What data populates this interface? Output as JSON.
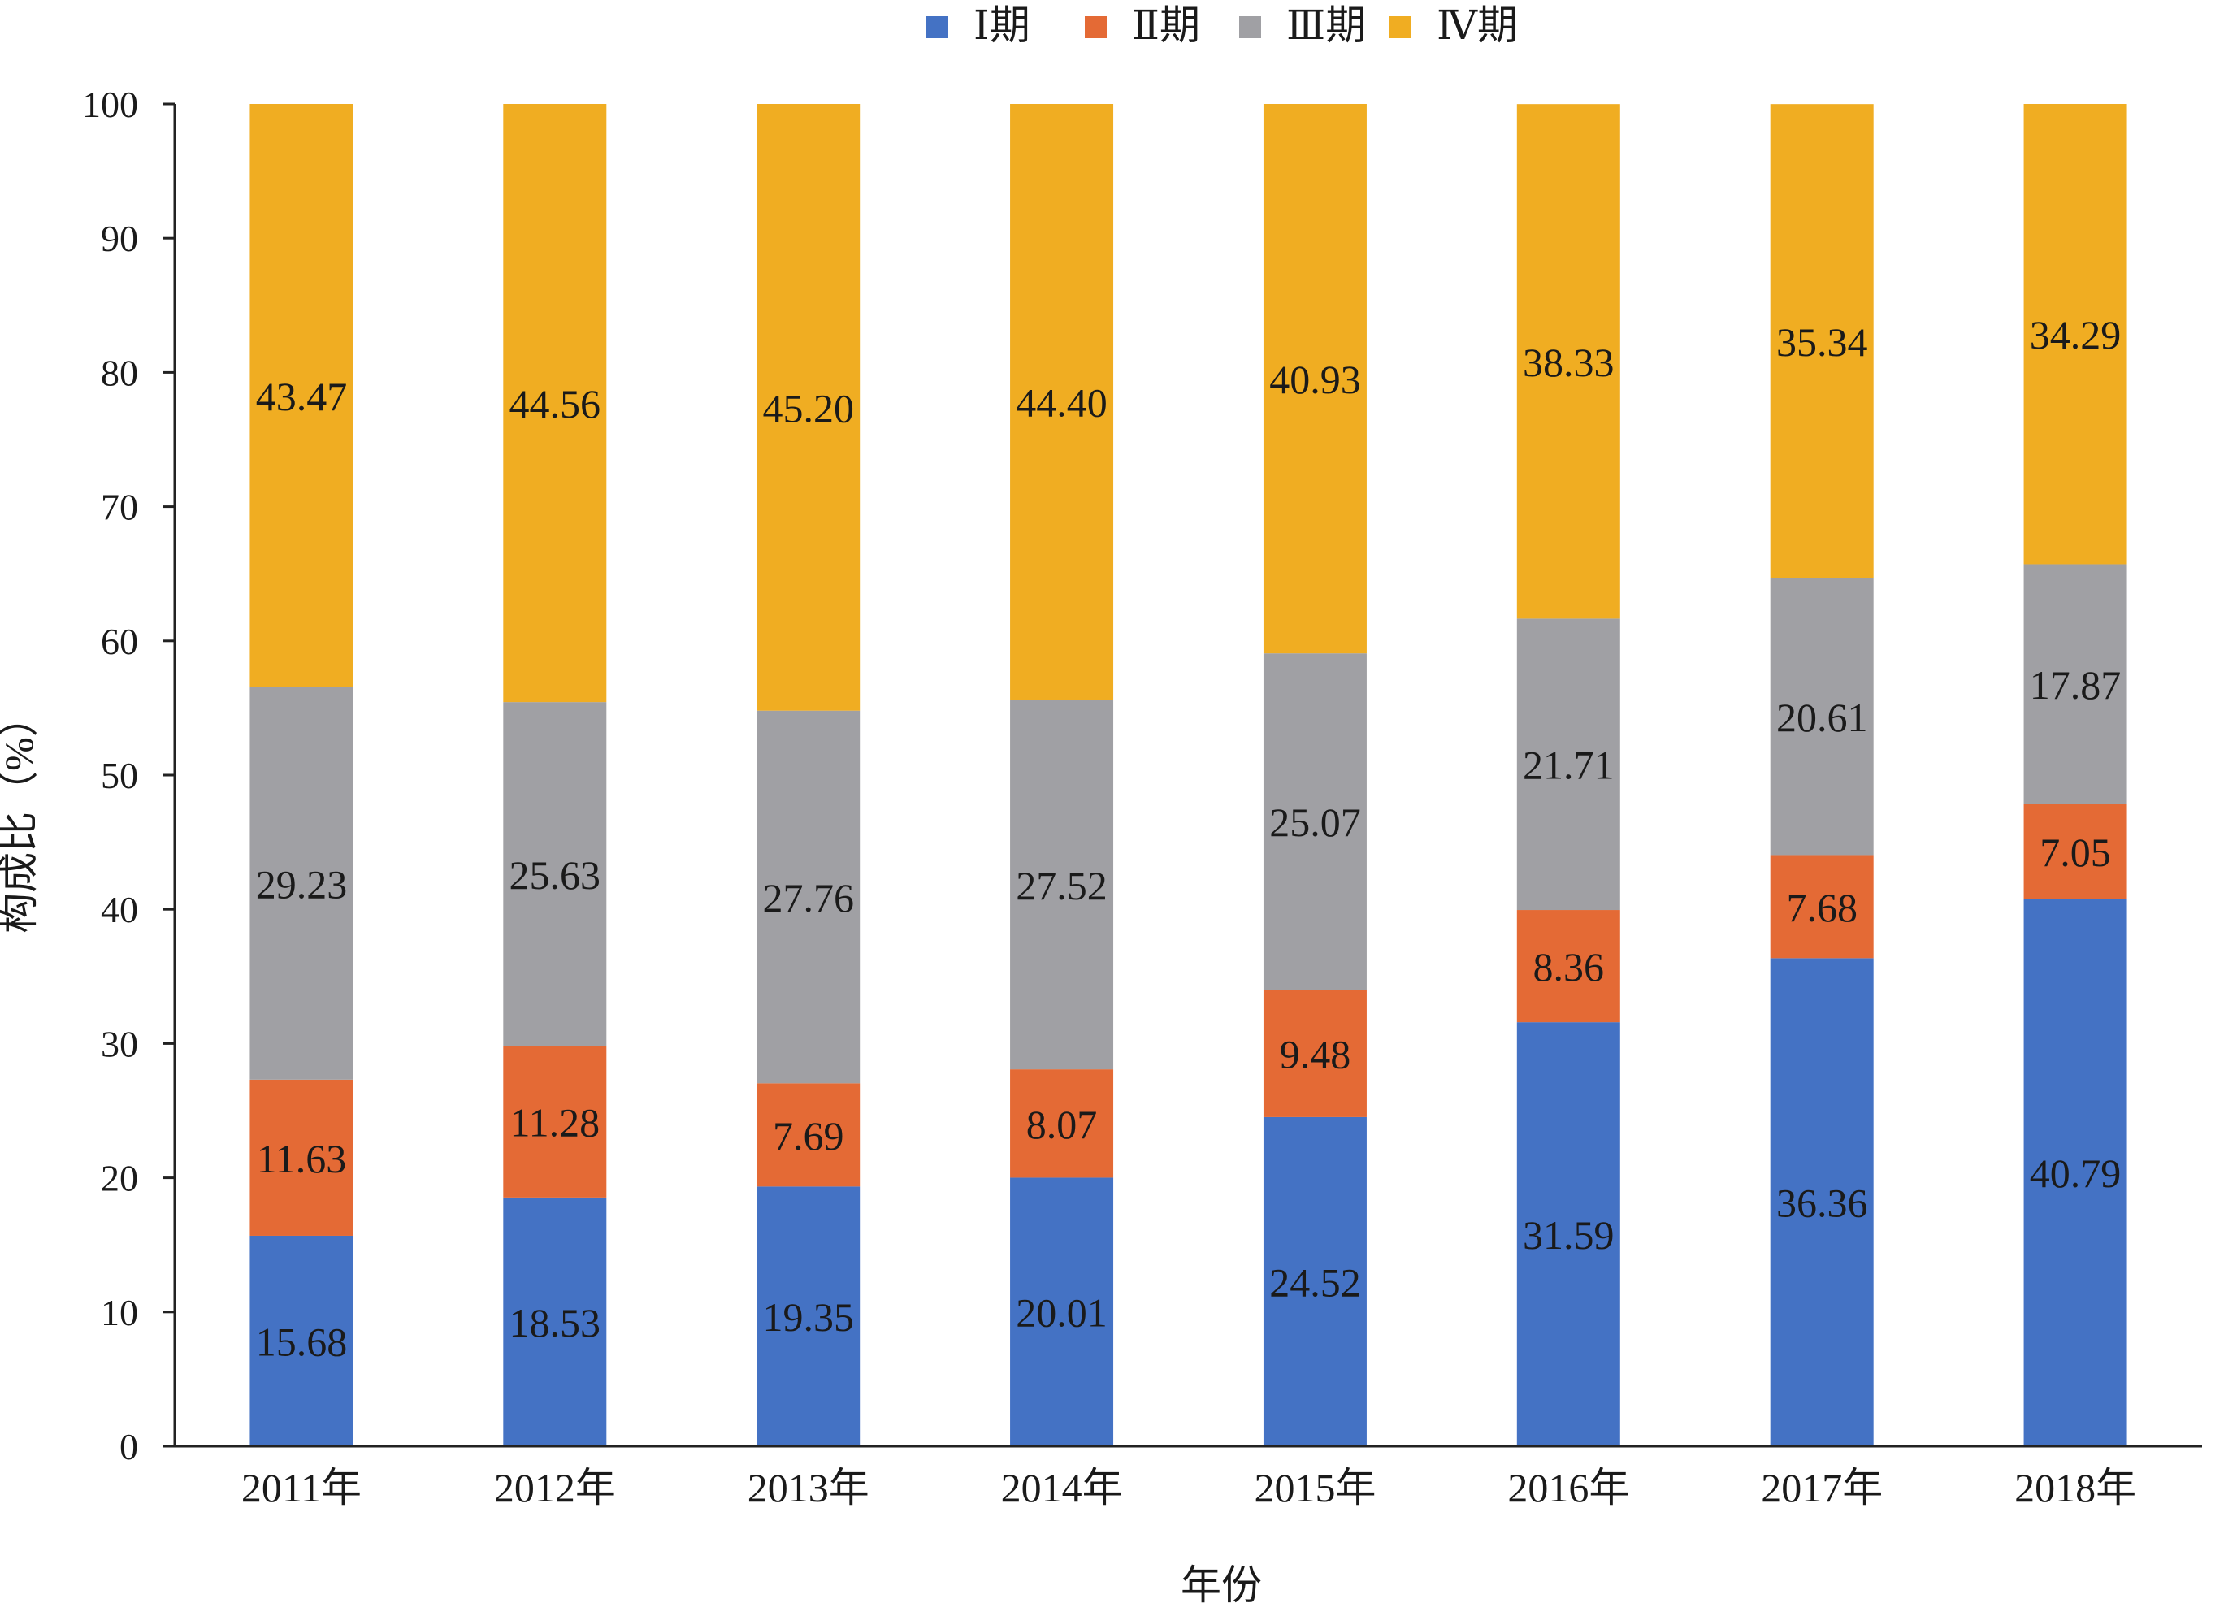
{
  "chart_data": {
    "type": "bar",
    "stacked": true,
    "categories": [
      "2011年",
      "2012年",
      "2013年",
      "2014年",
      "2015年",
      "2016年",
      "2017年",
      "2018年"
    ],
    "series": [
      {
        "name": "Ⅰ期",
        "color": "#4472C4",
        "values": [
          15.68,
          18.53,
          19.35,
          20.01,
          24.52,
          31.59,
          36.36,
          40.79
        ]
      },
      {
        "name": "Ⅱ期",
        "color": "#E46A35",
        "values": [
          11.63,
          11.28,
          7.69,
          8.07,
          9.48,
          8.36,
          7.68,
          7.05
        ]
      },
      {
        "name": "Ⅲ期",
        "color": "#A0A0A4",
        "values": [
          29.23,
          25.63,
          27.76,
          27.52,
          25.07,
          21.71,
          20.61,
          17.87
        ]
      },
      {
        "name": "Ⅳ期",
        "color": "#F0AD22",
        "values": [
          43.47,
          44.56,
          45.2,
          44.4,
          40.93,
          38.33,
          35.34,
          34.29
        ]
      }
    ],
    "data_labels": [
      [
        "15.68",
        "18.53",
        "19.35",
        "20.01",
        "24.52",
        "31.59",
        "36.36",
        "40.79"
      ],
      [
        "11.63",
        "11.28",
        "7.69",
        "8.07",
        "9.48",
        "8.36",
        "7.68",
        "7.05"
      ],
      [
        "29.23",
        "25.63",
        "27.76",
        "27.52",
        "25.07",
        "21.71",
        "20.61",
        "17.87"
      ],
      [
        "43.47",
        "44.56",
        "45.20",
        "44.40",
        "40.93",
        "38.33",
        "35.34",
        "34.29"
      ]
    ],
    "xlabel": "年份",
    "ylabel": "构成比（%）",
    "ylim": [
      0,
      100
    ],
    "yticks": [
      0,
      10,
      20,
      30,
      40,
      50,
      60,
      70,
      80,
      90,
      100
    ],
    "grid": false,
    "legend_position": "top-center"
  }
}
